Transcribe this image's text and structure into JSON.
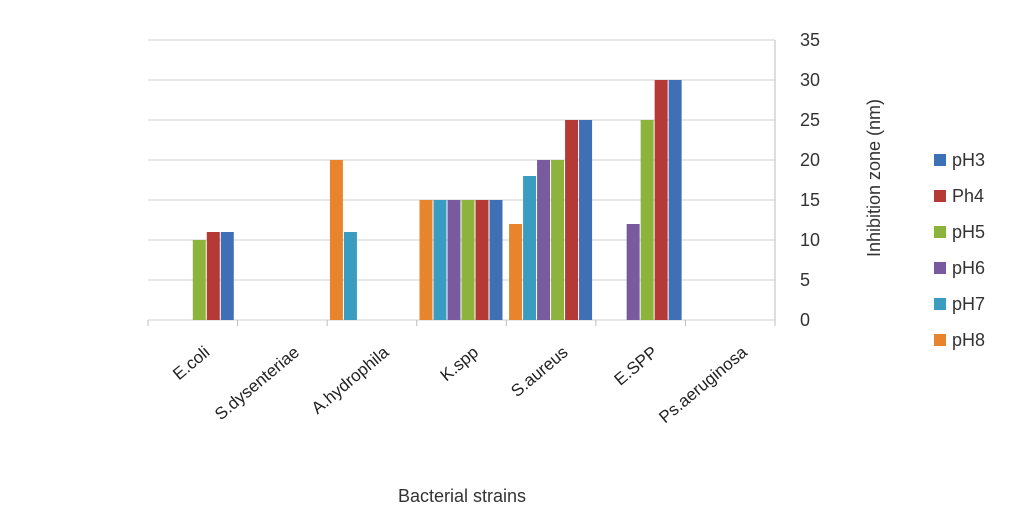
{
  "chart_data": {
    "type": "bar",
    "title": "",
    "xlabel": "Bacterial strains",
    "ylabel": "Inhibition zone (nm)",
    "categories": [
      "E.coli",
      "S.dysenteriae",
      "A.hydrophila",
      "K.spp",
      "S.aureus",
      "E.SPP",
      "Ps.aeruginosa"
    ],
    "ylim": [
      0,
      35
    ],
    "yticks": [
      "0",
      "5",
      "10",
      "15",
      "20",
      "25",
      "30",
      "35"
    ],
    "y_axis_side": "right",
    "grid": true,
    "legend_position": "right",
    "series": [
      {
        "name": "pH8",
        "color": "#E8852C",
        "values": [
          0,
          0,
          20,
          15,
          12,
          0,
          0
        ]
      },
      {
        "name": "pH7",
        "color": "#3A9CC0",
        "values": [
          0,
          0,
          11,
          15,
          18,
          0,
          0
        ]
      },
      {
        "name": "pH6",
        "color": "#7A5A9E",
        "values": [
          0,
          0,
          0,
          15,
          20,
          12,
          0
        ]
      },
      {
        "name": "pH5",
        "color": "#8CB43C",
        "values": [
          10,
          0,
          0,
          15,
          20,
          25,
          0
        ]
      },
      {
        "name": "Ph4",
        "color": "#B53A36",
        "values": [
          11,
          0,
          0,
          15,
          25,
          30,
          0
        ]
      },
      {
        "name": "pH3",
        "color": "#3F6FB5",
        "values": [
          11,
          0,
          0,
          15,
          25,
          30,
          0
        ]
      }
    ],
    "legend_order": [
      "pH3",
      "Ph4",
      "pH5",
      "pH6",
      "pH7",
      "pH8"
    ]
  }
}
